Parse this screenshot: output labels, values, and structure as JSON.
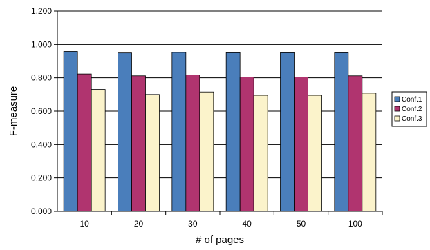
{
  "chart_data": {
    "type": "bar",
    "title": "",
    "xlabel": "# of pages",
    "ylabel": "F-measure",
    "categories": [
      "10",
      "20",
      "30",
      "40",
      "50",
      "100"
    ],
    "series": [
      {
        "name": "Conf.1",
        "color": "#4a7ebb",
        "values": [
          0.958,
          0.949,
          0.952,
          0.95,
          0.95,
          0.95
        ]
      },
      {
        "name": "Conf.2",
        "color": "#b0346f",
        "values": [
          0.823,
          0.812,
          0.817,
          0.805,
          0.805,
          0.812
        ]
      },
      {
        "name": "Conf.3",
        "color": "#fbf3cb",
        "values": [
          0.73,
          0.7,
          0.715,
          0.695,
          0.695,
          0.708
        ]
      }
    ],
    "ylim": [
      0,
      1.2
    ],
    "yticks": [
      "0.000",
      "0.200",
      "0.400",
      "0.600",
      "0.800",
      "1.000",
      "1.200"
    ],
    "grid": true,
    "legend_position": "right"
  }
}
